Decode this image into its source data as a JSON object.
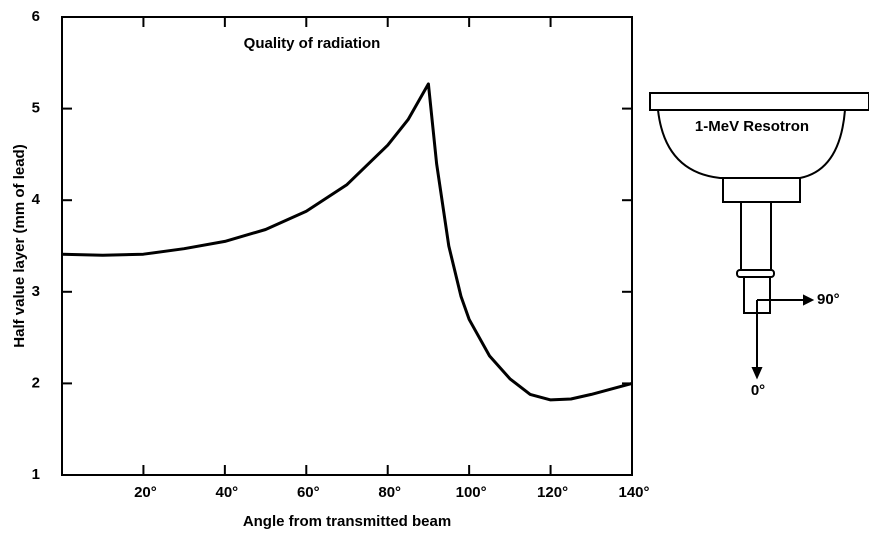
{
  "chart_data": {
    "type": "line",
    "title": "Quality of radiation",
    "x_label": "Angle from transmitted beam",
    "y_label": "Half value layer (mm of lead)",
    "x": [
      0,
      10,
      20,
      30,
      40,
      50,
      60,
      70,
      80,
      85,
      90,
      92,
      95,
      98,
      100,
      105,
      110,
      115,
      120,
      125,
      130,
      135,
      140
    ],
    "values": [
      3.41,
      3.4,
      3.41,
      3.47,
      3.55,
      3.68,
      3.88,
      4.17,
      4.6,
      4.88,
      5.27,
      4.4,
      3.5,
      2.95,
      2.7,
      2.3,
      2.05,
      1.88,
      1.82,
      1.83,
      1.88,
      1.94,
      2.0
    ],
    "color": "#000000",
    "xlim": [
      0,
      140
    ],
    "xticks": [
      {
        "value": 20,
        "label": "20°"
      },
      {
        "value": 40,
        "label": "40°"
      },
      {
        "value": 60,
        "label": "60°"
      },
      {
        "value": 80,
        "label": "80°"
      },
      {
        "value": 100,
        "label": "100°"
      },
      {
        "value": 120,
        "label": "120°"
      },
      {
        "value": 140,
        "label": "140°"
      }
    ],
    "ylim": [
      1,
      6
    ],
    "yticks": [
      1,
      2,
      3,
      4,
      5,
      6
    ],
    "grid": false
  },
  "diagram": {
    "labels": [
      "1-MeV Resotron",
      "90°",
      "0°"
    ]
  }
}
